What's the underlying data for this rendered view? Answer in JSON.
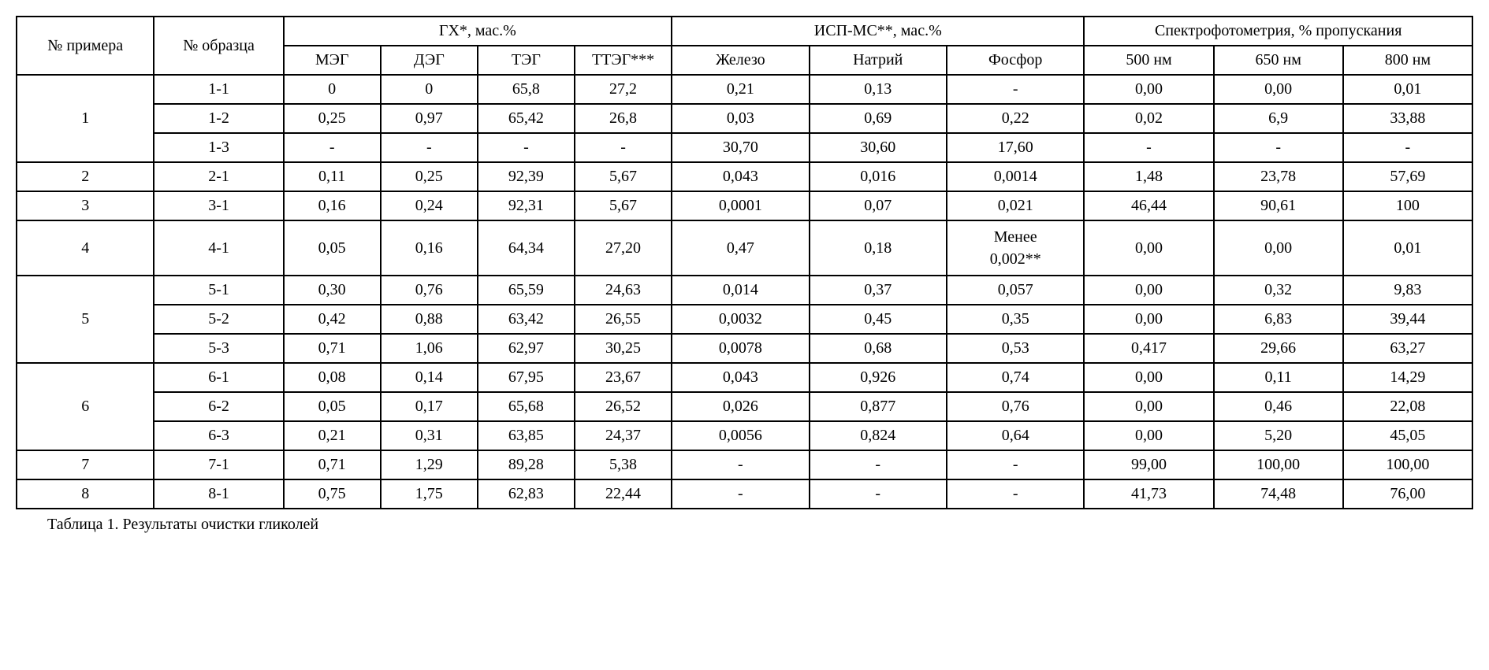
{
  "caption": "Таблица 1. Результаты очистки гликолей",
  "headers": {
    "example": "№ примера",
    "sample": "№ образца",
    "gx": "ГХ*, мас.%",
    "isp": "ИСП-МС**, мас.%",
    "spec": "Спектрофотометрия, % пропускания",
    "meg": "МЭГ",
    "deg": "ДЭГ",
    "teg": "ТЭГ",
    "tteg": "ТТЭГ***",
    "fe": "Железо",
    "na": "Натрий",
    "p": "Фосфор",
    "nm500": "500 нм",
    "nm650": "650 нм",
    "nm800": "800 нм"
  },
  "groups": [
    {
      "example": "1",
      "rows": [
        {
          "sample": "1-1",
          "meg": "0",
          "deg": "0",
          "teg": "65,8",
          "tteg": "27,2",
          "fe": "0,21",
          "na": "0,13",
          "p": "-",
          "nm500": "0,00",
          "nm650": "0,00",
          "nm800": "0,01"
        },
        {
          "sample": "1-2",
          "meg": "0,25",
          "deg": "0,97",
          "teg": "65,42",
          "tteg": "26,8",
          "fe": "0,03",
          "na": "0,69",
          "p": "0,22",
          "nm500": "0,02",
          "nm650": "6,9",
          "nm800": "33,88"
        },
        {
          "sample": "1-3",
          "meg": "-",
          "deg": "-",
          "teg": "-",
          "tteg": "-",
          "fe": "30,70",
          "na": "30,60",
          "p": "17,60",
          "nm500": "-",
          "nm650": "-",
          "nm800": "-"
        }
      ]
    },
    {
      "example": "2",
      "rows": [
        {
          "sample": "2-1",
          "meg": "0,11",
          "deg": "0,25",
          "teg": "92,39",
          "tteg": "5,67",
          "fe": "0,043",
          "na": "0,016",
          "p": "0,0014",
          "nm500": "1,48",
          "nm650": "23,78",
          "nm800": "57,69"
        }
      ]
    },
    {
      "example": "3",
      "rows": [
        {
          "sample": "3-1",
          "meg": "0,16",
          "deg": "0,24",
          "teg": "92,31",
          "tteg": "5,67",
          "fe": "0,0001",
          "na": "0,07",
          "p": "0,021",
          "nm500": "46,44",
          "nm650": "90,61",
          "nm800": "100"
        }
      ]
    },
    {
      "example": "4",
      "rows": [
        {
          "sample": "4-1",
          "meg": "0,05",
          "deg": "0,16",
          "teg": "64,34",
          "tteg": "27,20",
          "fe": "0,47",
          "na": "0,18",
          "p": "Менее 0,002**",
          "nm500": "0,00",
          "nm650": "0,00",
          "nm800": "0,01",
          "p_multiline": true
        }
      ]
    },
    {
      "example": "5",
      "rows": [
        {
          "sample": "5-1",
          "meg": "0,30",
          "deg": "0,76",
          "teg": "65,59",
          "tteg": "24,63",
          "fe": "0,014",
          "na": "0,37",
          "p": "0,057",
          "nm500": "0,00",
          "nm650": "0,32",
          "nm800": "9,83"
        },
        {
          "sample": "5-2",
          "meg": "0,42",
          "deg": "0,88",
          "teg": "63,42",
          "tteg": "26,55",
          "fe": "0,0032",
          "na": "0,45",
          "p": "0,35",
          "nm500": "0,00",
          "nm650": "6,83",
          "nm800": "39,44"
        },
        {
          "sample": "5-3",
          "meg": "0,71",
          "deg": "1,06",
          "teg": "62,97",
          "tteg": "30,25",
          "fe": "0,0078",
          "na": "0,68",
          "p": "0,53",
          "nm500": "0,417",
          "nm650": "29,66",
          "nm800": "63,27"
        }
      ]
    },
    {
      "example": "6",
      "rows": [
        {
          "sample": "6-1",
          "meg": "0,08",
          "deg": "0,14",
          "teg": "67,95",
          "tteg": "23,67",
          "fe": "0,043",
          "na": "0,926",
          "p": "0,74",
          "nm500": "0,00",
          "nm650": "0,11",
          "nm800": "14,29"
        },
        {
          "sample": "6-2",
          "meg": "0,05",
          "deg": "0,17",
          "teg": "65,68",
          "tteg": "26,52",
          "fe": "0,026",
          "na": "0,877",
          "p": "0,76",
          "nm500": "0,00",
          "nm650": "0,46",
          "nm800": "22,08"
        },
        {
          "sample": "6-3",
          "meg": "0,21",
          "deg": "0,31",
          "teg": "63,85",
          "tteg": "24,37",
          "fe": "0,0056",
          "na": "0,824",
          "p": "0,64",
          "nm500": "0,00",
          "nm650": "5,20",
          "nm800": "45,05"
        }
      ]
    },
    {
      "example": "7",
      "rows": [
        {
          "sample": "7-1",
          "meg": "0,71",
          "deg": "1,29",
          "teg": "89,28",
          "tteg": "5,38",
          "fe": "-",
          "na": "-",
          "p": "-",
          "nm500": "99,00",
          "nm650": "100,00",
          "nm800": "100,00"
        }
      ]
    },
    {
      "example": "8",
      "rows": [
        {
          "sample": "8-1",
          "meg": "0,75",
          "deg": "1,75",
          "teg": "62,83",
          "tteg": "22,44",
          "fe": "-",
          "na": "-",
          "p": "-",
          "nm500": "41,73",
          "nm650": "74,48",
          "nm800": "76,00"
        }
      ]
    }
  ]
}
